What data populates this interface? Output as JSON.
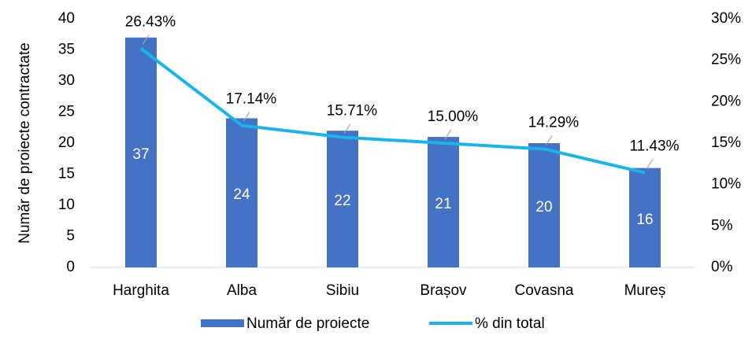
{
  "chart_data": {
    "type": "bar_line",
    "y_label": "Număr de proiecte contractate",
    "categories": [
      "Harghita",
      "Alba",
      "Sibiu",
      "Brașov",
      "Covasna",
      "Mureș"
    ],
    "series": [
      {
        "name": "Număr de proiecte",
        "color": "#4472c4",
        "type": "bar",
        "values": [
          37,
          24,
          22,
          21,
          20,
          16
        ]
      },
      {
        "name": "% din total",
        "color": "#1ab4ec",
        "type": "line",
        "axis": "y2",
        "values": [
          26.43,
          17.14,
          15.71,
          15.0,
          14.29,
          11.43
        ],
        "value_labels": [
          "26.43%",
          "17.14%",
          "15.71%",
          "15.00%",
          "14.29%",
          "11.43%"
        ]
      }
    ],
    "ylim": [
      0,
      40
    ],
    "yticks": [
      0,
      5,
      10,
      15,
      20,
      25,
      30,
      35,
      40
    ],
    "y2lim": [
      0,
      30
    ],
    "y2ticks": [
      {
        "value": 0,
        "label": "0%"
      },
      {
        "value": 5,
        "label": "5%"
      },
      {
        "value": 10,
        "label": "10%"
      },
      {
        "value": 15,
        "label": "15%"
      },
      {
        "value": 20,
        "label": "20%"
      },
      {
        "value": 25,
        "label": "25%"
      },
      {
        "value": 30,
        "label": "30%"
      }
    ],
    "legend": "bottom",
    "grid": false
  }
}
